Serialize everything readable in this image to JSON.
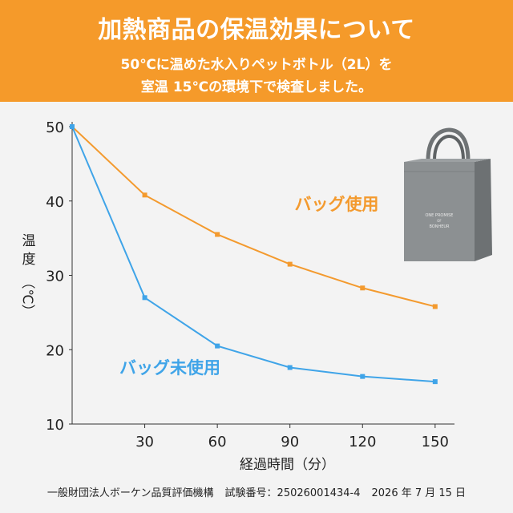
{
  "header": {
    "title": "加熱商品の保温効果について",
    "subtitle_line1": "50℃に温めた水入りペットボトル（2L）を",
    "subtitle_line2": "室温 15℃の環境下で検査しました。"
  },
  "footer": {
    "org": "一般財団法人ボーケン品質評価機構",
    "test_no": "試験番号：25026001434-4",
    "date": "2026 年 7 月 15 日"
  },
  "bag_image": {
    "icon": "tote-bag-icon",
    "print": "ONE PROMISE OF BONHEUR"
  },
  "colors": {
    "orange": "#f39a2e",
    "blue": "#3fa4e8",
    "banner": "#f59a2a"
  },
  "chart_data": {
    "type": "line",
    "title": "",
    "xlabel": "経過時間（分）",
    "ylabel_lines": [
      "温",
      "度",
      "（℃）"
    ],
    "x": [
      0,
      30,
      60,
      90,
      120,
      150
    ],
    "xticks": [
      30,
      60,
      90,
      120,
      150
    ],
    "yticks": [
      10,
      20,
      30,
      40,
      50
    ],
    "xlim": [
      0,
      158
    ],
    "ylim": [
      10,
      50
    ],
    "grid": false,
    "series": [
      {
        "name": "バッグ使用",
        "color": "#f39a2e",
        "values": [
          50,
          40.8,
          35.5,
          31.5,
          28.3,
          25.8
        ]
      },
      {
        "name": "バッグ未使用",
        "color": "#3fa4e8",
        "values": [
          50,
          27.0,
          20.5,
          17.6,
          16.4,
          15.7
        ]
      }
    ]
  }
}
